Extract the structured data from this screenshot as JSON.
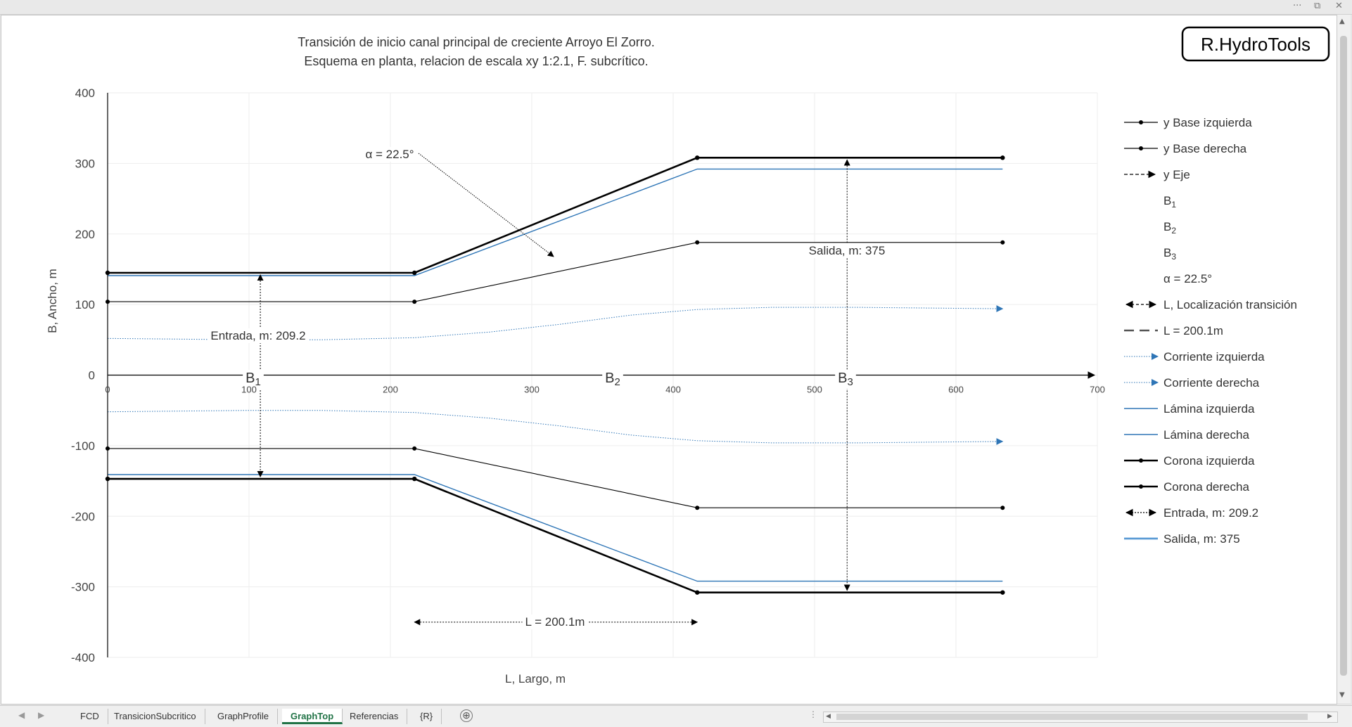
{
  "window": {
    "menu_glyph": "···",
    "restore_glyph": "⧉",
    "close_glyph": "✕"
  },
  "chart_data": {
    "type": "line",
    "title": "Transición de inicio canal principal de creciente Arroyo El Zorro.",
    "subtitle": "Esquema en planta, relacion de escala xy  1:2.1, F. subcrítico.",
    "xlabel": "L, Largo, m",
    "ylabel": "B, Ancho, m",
    "xlim": [
      0,
      700
    ],
    "ylim": [
      -400,
      400
    ],
    "x_ticks": [
      0,
      100,
      200,
      300,
      400,
      500,
      600,
      700
    ],
    "y_ticks": [
      400,
      300,
      200,
      100,
      0,
      -100,
      -200,
      -300,
      -400
    ],
    "grid": true,
    "legend_position": "right",
    "series": [
      {
        "name": "y Base izquierda",
        "color": "#000000",
        "x": [
          0,
          217,
          417,
          633
        ],
        "y": [
          104,
          104,
          188,
          188
        ]
      },
      {
        "name": "y Base derecha",
        "color": "#000000",
        "x": [
          0,
          217,
          417,
          633
        ],
        "y": [
          -104,
          -104,
          -188,
          -188
        ]
      },
      {
        "name": "y Eje",
        "color": "#000000",
        "x": [
          0,
          700
        ],
        "y": [
          0,
          0
        ]
      },
      {
        "name": "Corriente izquierda",
        "color": "#2e75b6",
        "x": [
          0,
          50,
          100,
          150,
          217,
          270,
          320,
          370,
          417,
          470,
          530,
          580,
          633
        ],
        "y": [
          52,
          51,
          50,
          50,
          53,
          61,
          72,
          85,
          93,
          96,
          96,
          95,
          94
        ]
      },
      {
        "name": "Corriente derecha",
        "color": "#2e75b6",
        "x": [
          0,
          50,
          100,
          150,
          217,
          270,
          320,
          370,
          417,
          470,
          530,
          580,
          633
        ],
        "y": [
          -52,
          -51,
          -50,
          -50,
          -53,
          -61,
          -72,
          -85,
          -93,
          -96,
          -96,
          -95,
          -94
        ]
      },
      {
        "name": "Lámina izquierda",
        "color": "#2e75b6",
        "x": [
          0,
          217,
          417,
          633
        ],
        "y": [
          141,
          141,
          292,
          292
        ]
      },
      {
        "name": "Lámina derecha",
        "color": "#2e75b6",
        "x": [
          0,
          217,
          417,
          633
        ],
        "y": [
          -141,
          -141,
          -292,
          -292
        ]
      },
      {
        "name": "Corona izquierda",
        "color": "#000000",
        "x": [
          0,
          217,
          417,
          633
        ],
        "y": [
          145,
          145,
          308,
          308
        ]
      },
      {
        "name": "Corona derecha",
        "color": "#000000",
        "x": [
          0,
          217,
          417,
          633
        ],
        "y": [
          -147,
          -147,
          -308,
          -308
        ]
      },
      {
        "name": "Entrada, m: 209.2",
        "color": "#000000",
        "x": [
          108,
          108
        ],
        "y": [
          145,
          -147
        ]
      },
      {
        "name": "Salida, m: 375",
        "color": "#000000",
        "x": [
          523,
          523
        ],
        "y": [
          308,
          -308
        ]
      },
      {
        "name": "L, Localización transición",
        "color": "#000000",
        "x": [
          217,
          417
        ],
        "y": [
          -350,
          -350
        ]
      }
    ],
    "annotations": [
      {
        "text": "α = 22.5°"
      },
      {
        "text": "Entrada, m: 209.2"
      },
      {
        "text": "Salida, m: 375"
      },
      {
        "text": "L = 200.1m"
      },
      {
        "text": "B",
        "sub": "1"
      },
      {
        "text": "B",
        "sub": "2"
      },
      {
        "text": "B",
        "sub": "3"
      }
    ],
    "legend": [
      {
        "label": "y Base izquierda",
        "style": "marker-line",
        "color": "#000000"
      },
      {
        "label": "y Base derecha",
        "style": "marker-line",
        "color": "#000000"
      },
      {
        "label": "y Eje",
        "style": "dash-arrow",
        "color": "#000000"
      },
      {
        "label": "B",
        "sub": "1",
        "style": "none",
        "color": "#000000"
      },
      {
        "label": "B",
        "sub": "2",
        "style": "none",
        "color": "#000000"
      },
      {
        "label": "B",
        "sub": "3",
        "style": "none",
        "color": "#000000"
      },
      {
        "label": "α = 22.5°",
        "style": "none",
        "color": "#000000"
      },
      {
        "label": "L, Localización transición",
        "style": "double-arrow",
        "color": "#000000"
      },
      {
        "label": "L = 200.1m",
        "style": "long-dash",
        "color": "#555555"
      },
      {
        "label": "Corriente izquierda",
        "style": "dot-arrow",
        "color": "#2e75b6"
      },
      {
        "label": "Corriente derecha",
        "style": "dot-arrow",
        "color": "#2e75b6"
      },
      {
        "label": "Lámina izquierda",
        "style": "line",
        "color": "#2e75b6"
      },
      {
        "label": "Lámina derecha",
        "style": "line",
        "color": "#2e75b6"
      },
      {
        "label": "Corona izquierda",
        "style": "marker-line-bold",
        "color": "#000000"
      },
      {
        "label": "Corona derecha",
        "style": "marker-line-bold",
        "color": "#000000"
      },
      {
        "label": "Entrada, m: 209.2",
        "style": "double-arrow-dash",
        "color": "#000000"
      },
      {
        "label": "Salida, m: 375",
        "style": "thick-line",
        "color": "#5b9bd5"
      }
    ],
    "logo": "R.HydroTools"
  },
  "sheet_tabs": [
    "FCD",
    "TransicionSubcritico",
    "GraphProfile",
    "GraphTop",
    "Referencias",
    "{R}"
  ],
  "active_tab": "GraphTop",
  "add_sheet_glyph": "⊕",
  "nav": {
    "prev": "◀",
    "next": "▶",
    "ellipsis": "⋮"
  }
}
